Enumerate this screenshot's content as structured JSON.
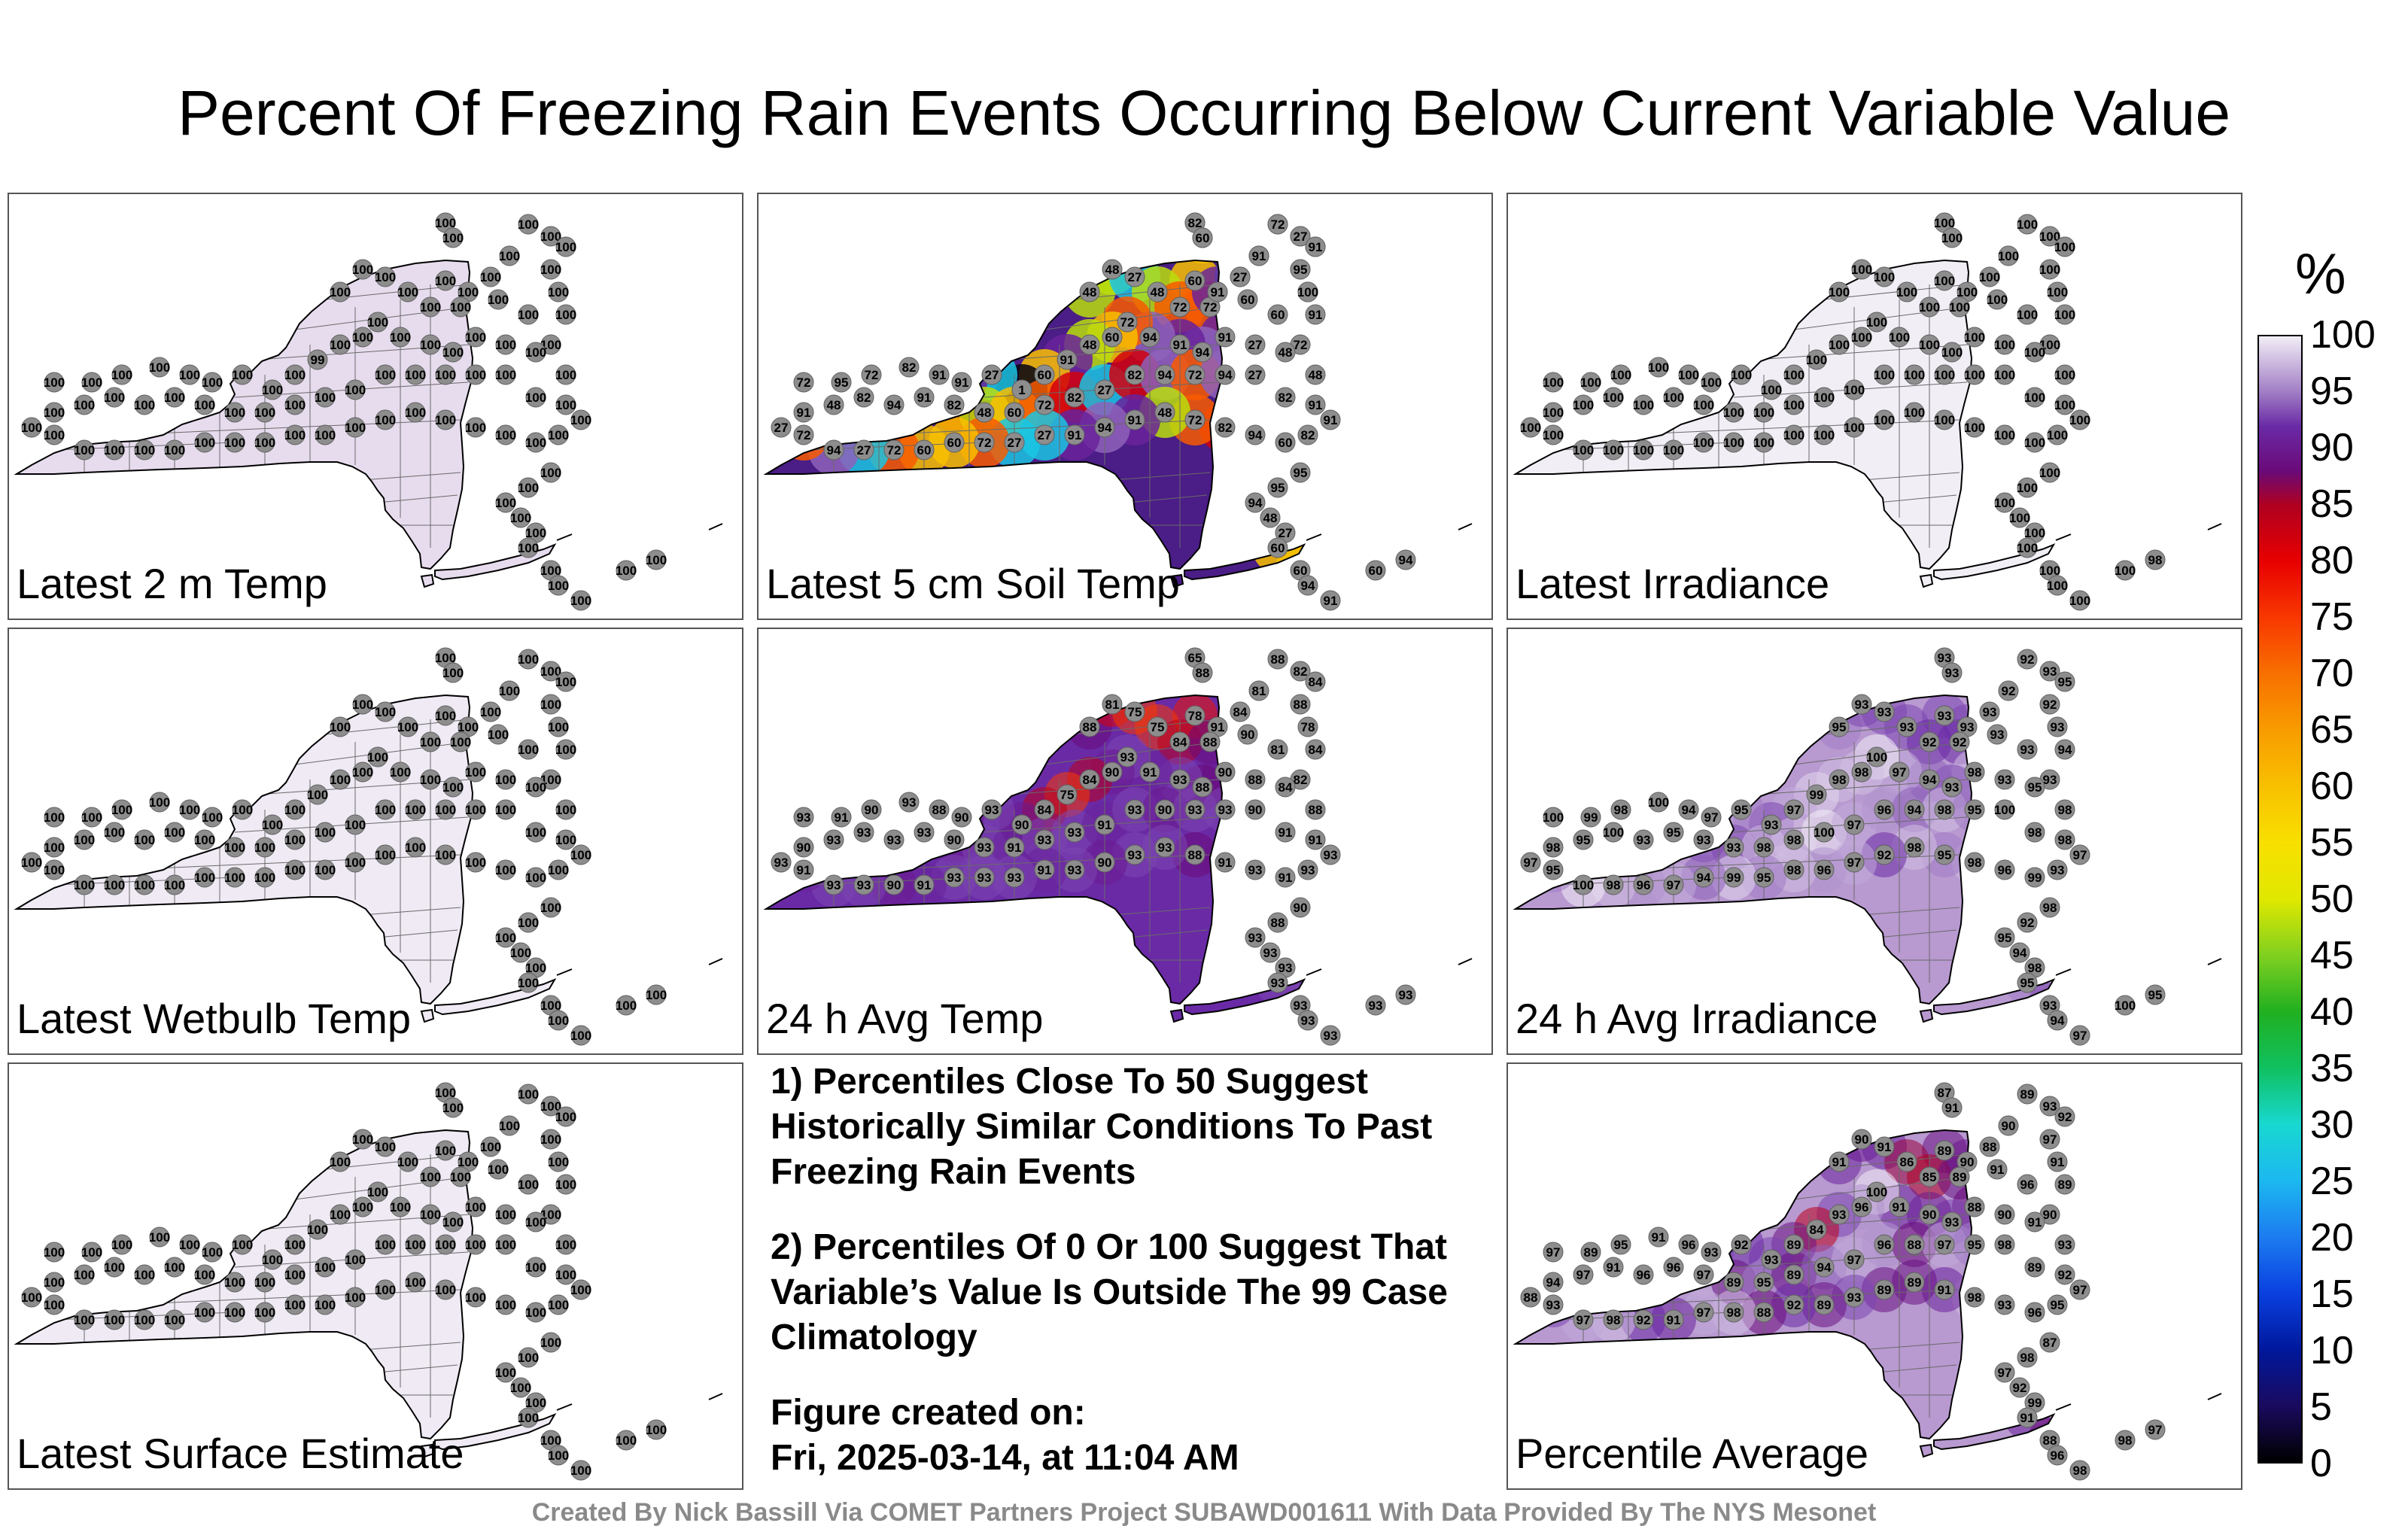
{
  "title": "Percent Of Freezing Rain Events Occurring Below Current Variable Value",
  "panels": [
    {
      "id": "p1",
      "label": "Latest 2 m Temp",
      "fill": "#e7dcee",
      "mode": "uniform",
      "stations": [
        100,
        100,
        100,
        100,
        100,
        100,
        100,
        100,
        100,
        100,
        100,
        100,
        100,
        100,
        100,
        100,
        100,
        100,
        100,
        100,
        100,
        100,
        100,
        100,
        100,
        100,
        100,
        100,
        100,
        100,
        100,
        99,
        100,
        100,
        100,
        100,
        100,
        100,
        100,
        100,
        100,
        100,
        100,
        100,
        100,
        100,
        100,
        100,
        100,
        100,
        100,
        100,
        100,
        100,
        100,
        100,
        100,
        100,
        100,
        100,
        100,
        100,
        100,
        100,
        100,
        100,
        100,
        100,
        100,
        100,
        100,
        100,
        100,
        100,
        100,
        100,
        100,
        100,
        100,
        100,
        100,
        100,
        100,
        100,
        100,
        100,
        100,
        100,
        100,
        100
      ]
    },
    {
      "id": "p2",
      "label": "Latest 5 cm Soil Temp",
      "fill": "#4b1d86",
      "mode": "soil",
      "stations": [
        48,
        72,
        60,
        48,
        48,
        60,
        60,
        94,
        27,
        48,
        60,
        48,
        48,
        27,
        48,
        72,
        72,
        60,
        60,
        91,
        72,
        48,
        48,
        27,
        91,
        94,
        91,
        94,
        72,
        60,
        48,
        91,
        60,
        1,
        27,
        91,
        91,
        82,
        72,
        95,
        72,
        91,
        48,
        82,
        94,
        91,
        82,
        48,
        60,
        72,
        82,
        27,
        82,
        94,
        72,
        94,
        27,
        82,
        91,
        91,
        82,
        60,
        94,
        82,
        72,
        48,
        91,
        94,
        91,
        27,
        27,
        72,
        60,
        60,
        72,
        27,
        94,
        72,
        27,
        95,
        95,
        94,
        48,
        27,
        60,
        60,
        94,
        60,
        94,
        91,
        82,
        72,
        27,
        60,
        91,
        91,
        100,
        95,
        27,
        91
      ]
    },
    {
      "id": "p3",
      "label": "Latest Irradiance",
      "fill": "#f2eef6",
      "mode": "uniform",
      "stations": [
        100,
        100,
        100,
        100,
        100,
        100,
        100,
        100,
        100,
        100,
        100,
        100,
        100,
        100,
        100,
        100,
        100,
        100,
        100,
        100,
        100,
        100,
        100,
        100,
        100,
        100,
        100,
        100,
        100,
        100,
        100,
        100,
        100,
        100,
        100,
        100,
        100,
        100,
        100,
        100,
        100,
        100,
        100,
        100,
        100,
        100,
        100,
        100,
        100,
        100,
        100,
        100,
        100,
        100,
        100,
        100,
        100,
        100,
        100,
        100,
        100,
        100,
        100,
        100,
        100,
        100,
        100,
        100,
        100,
        100,
        100,
        100,
        100,
        100,
        100,
        100,
        100,
        100,
        100,
        100,
        100,
        100,
        100,
        100,
        100,
        100,
        100,
        100,
        98,
        100
      ]
    },
    {
      "id": "p4",
      "label": "Latest Wetbulb Temp",
      "fill": "#efeaf4",
      "mode": "uniform",
      "stations": [
        100,
        100,
        100,
        100,
        100,
        100,
        100,
        100,
        100,
        100,
        100,
        100,
        100,
        100,
        100,
        100,
        100,
        100,
        100,
        100,
        100,
        100,
        100,
        100,
        100,
        100,
        100,
        100,
        100,
        100,
        100,
        100,
        100,
        100,
        100,
        100,
        100,
        100,
        100,
        100,
        100,
        100,
        100,
        100,
        100,
        100,
        100,
        100,
        100,
        100,
        100,
        100,
        100,
        100,
        100,
        100,
        100,
        100,
        100,
        100,
        100,
        100,
        100,
        100,
        100,
        100,
        100,
        100,
        100,
        100,
        100,
        100,
        100,
        100,
        100,
        100,
        100,
        100,
        100,
        100,
        100,
        100,
        100,
        100,
        100,
        100,
        100,
        100,
        100,
        100
      ]
    },
    {
      "id": "p5",
      "label": "24 h Avg Temp",
      "fill": "#6a2aa6",
      "mode": "avgtemp",
      "stations": [
        65,
        88,
        82,
        88,
        81,
        84,
        78,
        88,
        84,
        91,
        78,
        88,
        81,
        75,
        75,
        84,
        88,
        90,
        81,
        84,
        82,
        88,
        84,
        88,
        90,
        88,
        93,
        91,
        93,
        90,
        84,
        75,
        84,
        90,
        93,
        90,
        88,
        93,
        90,
        91,
        93,
        90,
        93,
        93,
        93,
        93,
        90,
        93,
        91,
        93,
        93,
        91,
        93,
        90,
        93,
        93,
        90,
        91,
        91,
        93,
        93,
        91,
        93,
        91,
        88,
        93,
        93,
        90,
        93,
        91,
        93,
        93,
        93,
        91,
        90,
        93,
        93,
        91,
        93,
        90,
        88,
        93,
        93,
        93,
        93,
        93,
        93,
        93,
        93,
        93
      ]
    },
    {
      "id": "p6",
      "label": "24 h Avg Irradiance",
      "fill": "#b899d0",
      "mode": "irr",
      "stations": [
        93,
        92,
        93,
        93,
        92,
        95,
        93,
        92,
        93,
        93,
        93,
        95,
        93,
        93,
        93,
        92,
        92,
        93,
        93,
        94,
        93,
        98,
        95,
        93,
        98,
        93,
        94,
        97,
        100,
        98,
        98,
        99,
        97,
        93,
        95,
        97,
        94,
        100,
        98,
        99,
        100,
        98,
        95,
        100,
        93,
        95,
        93,
        93,
        98,
        98,
        100,
        97,
        96,
        94,
        98,
        95,
        100,
        98,
        98,
        97,
        93,
        99,
        96,
        98,
        95,
        98,
        92,
        97,
        96,
        98,
        95,
        99,
        94,
        97,
        96,
        98,
        100,
        95,
        97,
        98,
        92,
        95,
        94,
        98,
        95,
        93,
        94,
        100,
        95,
        97
      ]
    },
    {
      "id": "p7",
      "label": "Latest Surface Estimate",
      "fill": "#efeaf4",
      "mode": "uniform",
      "stations": [
        100,
        100,
        100,
        100,
        100,
        100,
        100,
        100,
        100,
        100,
        100,
        100,
        100,
        100,
        100,
        100,
        100,
        100,
        100,
        100,
        100,
        100,
        100,
        100,
        100,
        100,
        100,
        100,
        100,
        100,
        100,
        100,
        100,
        100,
        100,
        100,
        100,
        100,
        100,
        100,
        100,
        100,
        100,
        100,
        100,
        100,
        100,
        100,
        100,
        100,
        100,
        100,
        100,
        100,
        100,
        100,
        100,
        100,
        100,
        100,
        100,
        100,
        100,
        100,
        100,
        100,
        100,
        100,
        100,
        100,
        100,
        100,
        100,
        100,
        100,
        100,
        100,
        100,
        100,
        100,
        100,
        100,
        100,
        100,
        100,
        100,
        100,
        100,
        100,
        100
      ]
    },
    {
      "id": "p8",
      "label": "Percentile Average",
      "fill": "#b899d0",
      "mode": "avg",
      "stations": [
        87,
        89,
        93,
        91,
        90,
        92,
        91,
        97,
        88,
        90,
        89,
        91,
        90,
        91,
        86,
        85,
        89,
        91,
        96,
        89,
        90,
        93,
        91,
        90,
        88,
        93,
        90,
        91,
        100,
        96,
        93,
        84,
        89,
        93,
        92,
        93,
        96,
        91,
        95,
        89,
        97,
        94,
        97,
        91,
        96,
        96,
        97,
        89,
        95,
        89,
        94,
        97,
        96,
        88,
        97,
        95,
        98,
        89,
        92,
        97,
        95,
        96,
        93,
        98,
        91,
        89,
        89,
        93,
        89,
        92,
        88,
        98,
        97,
        91,
        92,
        98,
        97,
        93,
        88,
        87,
        98,
        97,
        92,
        99,
        91,
        88,
        96,
        98,
        97,
        98
      ]
    }
  ],
  "notes": {
    "note1": "1) Percentiles Close To 50 Suggest Historically Similar Conditions To Past Freezing Rain Events",
    "note2": "2) Percentiles Of 0 Or 100 Suggest That Variable’s Value Is Outside The 99 Case Climatology",
    "created_label": "Figure created on:",
    "created_value": "Fri, 2025-03-14, at 11:04 AM"
  },
  "colorbar": {
    "unit": "%",
    "ticks": [
      "100",
      "95",
      "90",
      "85",
      "80",
      "75",
      "70",
      "65",
      "60",
      "55",
      "50",
      "45",
      "40",
      "35",
      "30",
      "25",
      "20",
      "15",
      "10",
      "5",
      "0"
    ],
    "stops": [
      {
        "v": 0,
        "c": "#000000"
      },
      {
        "v": 5,
        "c": "#1a0a5e"
      },
      {
        "v": 10,
        "c": "#00189c"
      },
      {
        "v": 15,
        "c": "#0a40e0"
      },
      {
        "v": 20,
        "c": "#1c7cf0"
      },
      {
        "v": 25,
        "c": "#1cb8f0"
      },
      {
        "v": 30,
        "c": "#18d8d0"
      },
      {
        "v": 35,
        "c": "#10c060"
      },
      {
        "v": 40,
        "c": "#20b020"
      },
      {
        "v": 45,
        "c": "#80d020"
      },
      {
        "v": 50,
        "c": "#e0e800"
      },
      {
        "v": 55,
        "c": "#f8e000"
      },
      {
        "v": 60,
        "c": "#f8c000"
      },
      {
        "v": 65,
        "c": "#f89c00"
      },
      {
        "v": 70,
        "c": "#f87000"
      },
      {
        "v": 75,
        "c": "#f83800"
      },
      {
        "v": 80,
        "c": "#e80000"
      },
      {
        "v": 85,
        "c": "#b00020"
      },
      {
        "v": 88,
        "c": "#6a0a78"
      },
      {
        "v": 92,
        "c": "#6a2aa6"
      },
      {
        "v": 95,
        "c": "#a07cc4"
      },
      {
        "v": 100,
        "c": "#f2eef6"
      }
    ]
  },
  "footer": "Created By Nick Bassill Via COMET Partners Project SUBAWD001611 With Data Provided By The NYS Mesonet"
}
